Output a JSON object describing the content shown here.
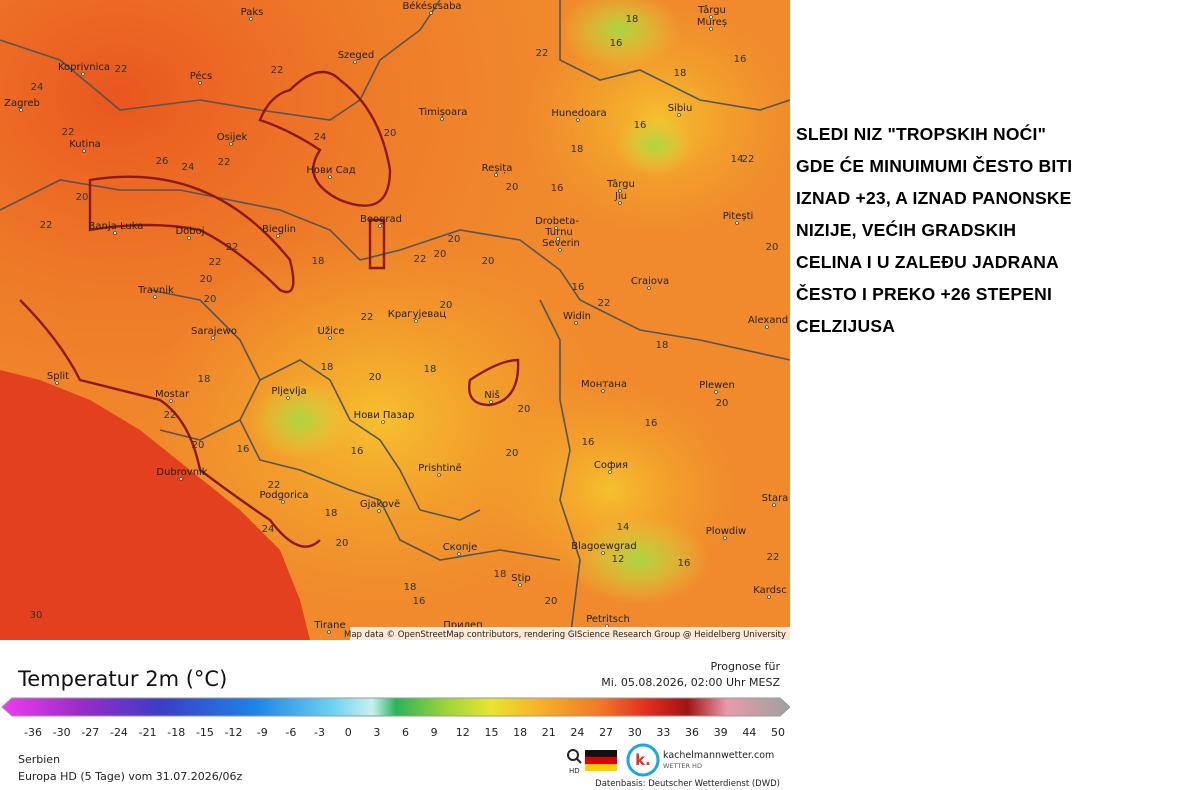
{
  "map": {
    "cities": [
      "Paks",
      "Békéscsaba",
      "Târgu",
      "Mureș",
      "Koprivnica",
      "Szeged",
      "Pécs",
      "Zagreb",
      "Timișoara",
      "Hunedoara",
      "Sibiu",
      "Osijek",
      "Kutina",
      "Нови Сад",
      "Reșița",
      "Târgu",
      "Jiu",
      "Pitești",
      "Banja Luka",
      "Doboj",
      "Bieglin",
      "Beograd",
      "Drobeta-",
      "Turnu",
      "Severin",
      "Travnik",
      "Craiova",
      "Крагујевац",
      "Widin",
      "Alexand",
      "Sarajewo",
      "Užice",
      "Split",
      "Монтана",
      "Plewen",
      "Mostar",
      "Pljevlja",
      "Niš",
      "Нови Пазар",
      "Dubrovnik",
      "София",
      "Prishtinë",
      "Podgorica",
      "Gjakovë",
      "Stara",
      "Plowdiw",
      "Скопје",
      "Blagoewgrad",
      "Stip",
      "Kardsc",
      "Tirane",
      "Прилеп",
      "Petritsch"
    ],
    "temperatures": [
      "18",
      "16",
      "22",
      "18",
      "16",
      "22",
      "24",
      "22",
      "24",
      "20",
      "16",
      "14",
      "18",
      "22",
      "26",
      "24",
      "22",
      "20",
      "16",
      "22",
      "20",
      "22",
      "22",
      "22",
      "20",
      "20",
      "20",
      "22",
      "20",
      "22",
      "20",
      "22",
      "20",
      "18",
      "18",
      "18",
      "20",
      "18",
      "18",
      "20",
      "16",
      "16",
      "16",
      "18",
      "20",
      "20",
      "22",
      "24",
      "18",
      "20",
      "16",
      "14",
      "12",
      "16",
      "22",
      "16",
      "20",
      "18",
      "30",
      "20",
      "22",
      "20",
      "16"
    ],
    "attribution": "Map data © OpenStreetMap contributors, rendering GIScience Research Group @ Heidelberg University"
  },
  "legend": {
    "title": "Temperatur 2m (°C)",
    "ticks": [
      "-36",
      "-30",
      "-27",
      "-24",
      "-21",
      "-18",
      "-15",
      "-12",
      "-9",
      "-6",
      "-3",
      "0",
      "3",
      "6",
      "9",
      "12",
      "15",
      "18",
      "21",
      "24",
      "27",
      "30",
      "33",
      "36",
      "39",
      "44",
      "50"
    ]
  },
  "forecast": {
    "label": "Prognose für",
    "time": "Mi. 05.08.2026, 02:00 Uhr MESZ"
  },
  "footer": {
    "region": "Serbien",
    "model": "Europa HD (5 Tage) vom 31.07.2026/06z",
    "zoom": "HD",
    "brand": "kachelmannwetter.com",
    "brand_sub": "WETTER HD",
    "source": "Datenbasis: Deutscher Wetterdienst (DWD)"
  },
  "note": {
    "lines": [
      "SLEDI NIZ \"TROPSKIH NOĆI\"",
      "GDE ĆE MINUIMUMI ČESTO BITI",
      "IZNAD +23, A IZNAD PANONSKE",
      "NIZIJE, VEĆIH GRADSKIH",
      "CELINA I U ZALEĐU JADRANA",
      "ČESTO I PREKO +26 STEPENI",
      "CELZIJUSA"
    ]
  }
}
